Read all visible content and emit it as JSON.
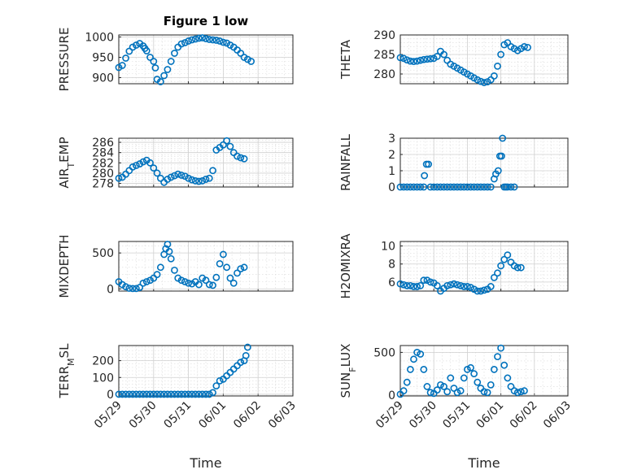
{
  "figure": {
    "title": "Figure 1 low",
    "xlabel": "Time",
    "marker_color": "#0072BD",
    "x_ticks": [
      "05/29",
      "05/30",
      "05/31",
      "06/01",
      "06/02",
      "06/03"
    ],
    "x_range_days": [
      "2020-05-29",
      "2020-06-03"
    ]
  },
  "chart_data": [
    {
      "type": "scatter",
      "ylabel": "PRESSURE",
      "ylim": [
        885,
        1005
      ],
      "yticks": [
        900,
        950,
        1000
      ],
      "grid": true,
      "minor_grid": true,
      "x": [
        0,
        0.1,
        0.2,
        0.3,
        0.4,
        0.5,
        0.6,
        0.7,
        0.75,
        0.8,
        0.9,
        1.0,
        1.05,
        1.1,
        1.2,
        1.3,
        1.4,
        1.5,
        1.6,
        1.7,
        1.8,
        1.9,
        2.0,
        2.1,
        2.2,
        2.3,
        2.4,
        2.5,
        2.6,
        2.7,
        2.8,
        2.9,
        3.0,
        3.1,
        3.2,
        3.3,
        3.4,
        3.5,
        3.6,
        3.7,
        3.8
      ],
      "y": [
        925,
        930,
        948,
        965,
        975,
        980,
        984,
        978,
        972,
        966,
        950,
        940,
        924,
        896,
        890,
        905,
        920,
        940,
        960,
        975,
        983,
        986,
        990,
        993,
        995,
        997,
        998,
        996,
        994,
        993,
        992,
        990,
        987,
        985,
        980,
        975,
        968,
        960,
        950,
        945,
        940
      ]
    },
    {
      "type": "scatter",
      "ylabel": "THETA",
      "ylim": [
        277.5,
        290
      ],
      "yticks": [
        280,
        285,
        290
      ],
      "grid": true,
      "minor_grid": true,
      "x": [
        0,
        0.1,
        0.2,
        0.3,
        0.4,
        0.5,
        0.6,
        0.7,
        0.8,
        0.9,
        1.0,
        1.1,
        1.2,
        1.3,
        1.4,
        1.5,
        1.6,
        1.7,
        1.8,
        1.9,
        2.0,
        2.1,
        2.2,
        2.3,
        2.4,
        2.5,
        2.6,
        2.7,
        2.8,
        2.9,
        3.0,
        3.1,
        3.2,
        3.3,
        3.4,
        3.5,
        3.6,
        3.7,
        3.8
      ],
      "y": [
        284.2,
        284.0,
        283.6,
        283.3,
        283.2,
        283.3,
        283.5,
        283.7,
        283.8,
        283.9,
        284.0,
        284.5,
        285.8,
        285.0,
        283.5,
        282.5,
        282.0,
        281.5,
        281.0,
        280.5,
        280.0,
        279.5,
        279.0,
        278.5,
        278.1,
        277.8,
        278.0,
        278.5,
        279.5,
        282,
        285,
        287.5,
        288.0,
        287.0,
        286.5,
        286.0,
        286.5,
        287.0,
        286.8
      ]
    },
    {
      "type": "scatter",
      "ylabel": "AIR_TEMP",
      "ylim": [
        277.3,
        286.8
      ],
      "yticks": [
        278,
        280,
        282,
        284,
        286
      ],
      "grid": true,
      "minor_grid": true,
      "x": [
        0,
        0.1,
        0.2,
        0.3,
        0.4,
        0.5,
        0.6,
        0.7,
        0.8,
        0.9,
        1.0,
        1.1,
        1.2,
        1.3,
        1.4,
        1.5,
        1.6,
        1.7,
        1.8,
        1.9,
        2.0,
        2.1,
        2.2,
        2.3,
        2.4,
        2.5,
        2.6,
        2.7,
        2.8,
        2.9,
        3.0,
        3.1,
        3.2,
        3.3,
        3.4,
        3.5,
        3.6
      ],
      "y": [
        279.0,
        279.2,
        279.8,
        280.5,
        281.2,
        281.5,
        281.8,
        282.2,
        282.5,
        282.0,
        281.0,
        280.0,
        279.0,
        278.2,
        278.8,
        279.2,
        279.5,
        279.8,
        279.6,
        279.4,
        279.0,
        278.7,
        278.5,
        278.4,
        278.5,
        278.8,
        279.0,
        280.5,
        284.5,
        285.0,
        285.5,
        286.3,
        285.2,
        284.0,
        283.3,
        283.0,
        282.8
      ]
    },
    {
      "type": "scatter",
      "ylabel": "RAINFALL",
      "ylim": [
        0,
        3
      ],
      "yticks": [
        0,
        1,
        2,
        3
      ],
      "grid": true,
      "minor_grid": true,
      "x": [
        0,
        0.1,
        0.2,
        0.3,
        0.4,
        0.5,
        0.6,
        0.7,
        0.72,
        0.78,
        0.84,
        0.9,
        1.0,
        1.1,
        1.2,
        1.3,
        1.4,
        1.5,
        1.6,
        1.7,
        1.8,
        1.9,
        2.0,
        2.1,
        2.2,
        2.3,
        2.4,
        2.5,
        2.6,
        2.7,
        2.8,
        2.85,
        2.92,
        2.97,
        3.02,
        3.05,
        3.1,
        3.15,
        3.2,
        3.3,
        3.4
      ],
      "y": [
        0,
        0,
        0,
        0,
        0,
        0,
        0,
        0,
        0.7,
        1.4,
        1.4,
        0,
        0,
        0,
        0,
        0,
        0,
        0,
        0,
        0,
        0,
        0,
        0,
        0,
        0,
        0,
        0,
        0,
        0,
        0,
        0.5,
        0.8,
        1.0,
        1.9,
        1.9,
        3.0,
        0,
        0,
        0,
        0,
        0
      ]
    },
    {
      "type": "scatter",
      "ylabel": "MIXDEPTH",
      "ylim": [
        -30,
        660
      ],
      "yticks": [
        0,
        500
      ],
      "grid": true,
      "minor_grid": true,
      "x": [
        0,
        0.1,
        0.2,
        0.3,
        0.4,
        0.5,
        0.6,
        0.7,
        0.8,
        0.9,
        1.0,
        1.1,
        1.2,
        1.3,
        1.35,
        1.4,
        1.45,
        1.5,
        1.6,
        1.7,
        1.8,
        1.9,
        2.0,
        2.1,
        2.2,
        2.3,
        2.4,
        2.5,
        2.6,
        2.7,
        2.8,
        2.9,
        3.0,
        3.1,
        3.2,
        3.3,
        3.4,
        3.5,
        3.6
      ],
      "y": [
        100,
        60,
        30,
        10,
        5,
        5,
        20,
        80,
        100,
        120,
        150,
        200,
        300,
        480,
        560,
        620,
        520,
        420,
        260,
        150,
        120,
        100,
        80,
        70,
        100,
        60,
        150,
        120,
        60,
        50,
        160,
        350,
        480,
        300,
        150,
        80,
        220,
        280,
        300
      ]
    },
    {
      "type": "scatter",
      "ylabel": "H2OMIXRA",
      "ylim": [
        5,
        10.5
      ],
      "yticks": [
        6,
        8,
        10
      ],
      "grid": true,
      "minor_grid": true,
      "x": [
        0,
        0.1,
        0.2,
        0.3,
        0.4,
        0.5,
        0.6,
        0.7,
        0.8,
        0.9,
        1.0,
        1.1,
        1.2,
        1.3,
        1.4,
        1.5,
        1.6,
        1.7,
        1.8,
        1.9,
        2.0,
        2.1,
        2.2,
        2.3,
        2.4,
        2.5,
        2.6,
        2.7,
        2.8,
        2.9,
        3.0,
        3.1,
        3.2,
        3.3,
        3.4,
        3.5,
        3.6
      ],
      "y": [
        5.8,
        5.7,
        5.6,
        5.6,
        5.5,
        5.5,
        5.6,
        6.2,
        6.2,
        6.0,
        5.9,
        5.6,
        5.0,
        5.3,
        5.6,
        5.7,
        5.8,
        5.7,
        5.6,
        5.5,
        5.5,
        5.4,
        5.2,
        5.0,
        5.0,
        5.1,
        5.2,
        5.5,
        6.5,
        7.0,
        7.8,
        8.5,
        9.0,
        8.2,
        7.8,
        7.6,
        7.6
      ]
    },
    {
      "type": "scatter",
      "ylabel": "TERR_MSL",
      "ylim": [
        -10,
        290
      ],
      "yticks": [
        0,
        100,
        200
      ],
      "grid": true,
      "minor_grid": true,
      "x": [
        0,
        0.1,
        0.2,
        0.3,
        0.4,
        0.5,
        0.6,
        0.7,
        0.8,
        0.9,
        1.0,
        1.1,
        1.2,
        1.3,
        1.4,
        1.5,
        1.6,
        1.7,
        1.8,
        1.9,
        2.0,
        2.1,
        2.2,
        2.3,
        2.4,
        2.5,
        2.6,
        2.7,
        2.8,
        2.9,
        3.0,
        3.1,
        3.2,
        3.3,
        3.4,
        3.5,
        3.6,
        3.65,
        3.7
      ],
      "y": [
        0,
        0,
        0,
        0,
        0,
        0,
        0,
        0,
        0,
        0,
        0,
        0,
        0,
        0,
        0,
        0,
        0,
        0,
        0,
        0,
        0,
        0,
        0,
        0,
        0,
        0,
        0,
        10,
        50,
        80,
        90,
        110,
        130,
        150,
        170,
        190,
        200,
        230,
        280
      ]
    },
    {
      "type": "scatter",
      "ylabel": "SUN_FLUX",
      "ylim": [
        -10,
        580
      ],
      "yticks": [
        0,
        500
      ],
      "grid": true,
      "minor_grid": true,
      "x": [
        0,
        0.1,
        0.2,
        0.3,
        0.4,
        0.5,
        0.6,
        0.7,
        0.8,
        0.9,
        1.0,
        1.1,
        1.2,
        1.3,
        1.4,
        1.5,
        1.6,
        1.7,
        1.8,
        1.9,
        2.0,
        2.1,
        2.2,
        2.3,
        2.4,
        2.5,
        2.6,
        2.7,
        2.8,
        2.9,
        3.0,
        3.1,
        3.2,
        3.3,
        3.4,
        3.5,
        3.6,
        3.7
      ],
      "y": [
        10,
        50,
        150,
        300,
        420,
        500,
        480,
        300,
        100,
        30,
        20,
        60,
        120,
        100,
        40,
        200,
        80,
        30,
        50,
        200,
        300,
        320,
        250,
        150,
        80,
        40,
        30,
        120,
        300,
        450,
        550,
        350,
        200,
        100,
        50,
        30,
        40,
        50
      ]
    }
  ]
}
